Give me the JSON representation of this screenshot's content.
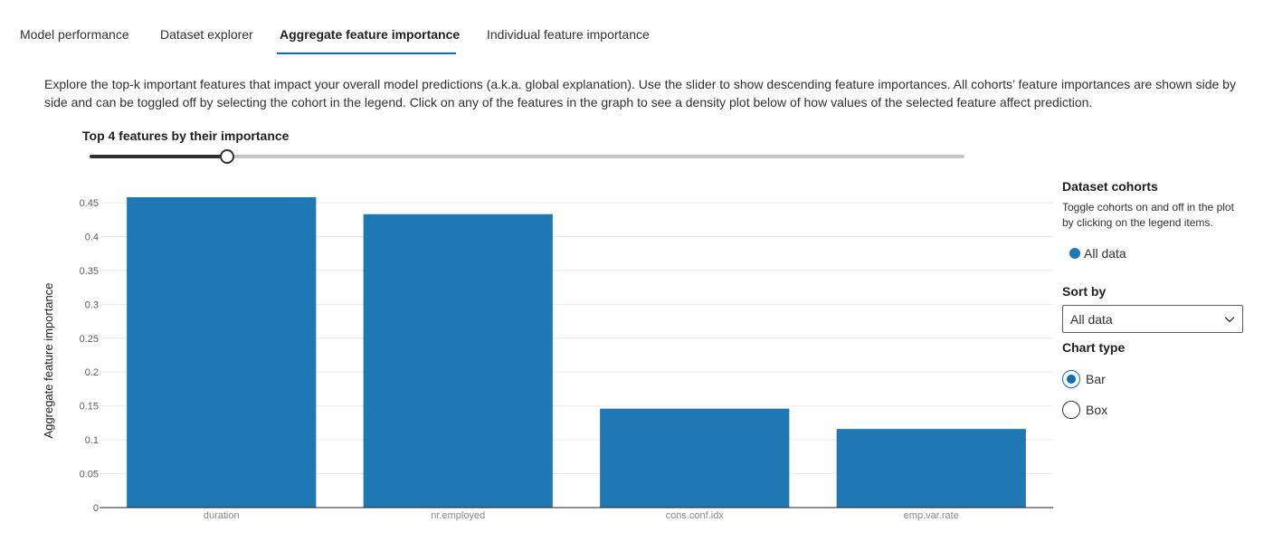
{
  "tabs": [
    {
      "label": "Model performance",
      "active": false
    },
    {
      "label": "Dataset explorer",
      "active": false
    },
    {
      "label": "Aggregate feature importance",
      "active": true
    },
    {
      "label": "Individual feature importance",
      "active": false
    }
  ],
  "description": "Explore the top-k important features that impact your overall model predictions (a.k.a. global explanation). Use the slider to show descending feature importances. All cohorts’ feature importances are shown side by side and can be toggled off by selecting the cohort in the legend. Click on any of the features in the graph to see a density plot below of how values of the selected feature affect prediction.",
  "slider": {
    "label": "Top 4 features by their importance",
    "value": 4,
    "fill_fraction": 0.157
  },
  "panel": {
    "cohorts_title": "Dataset cohorts",
    "cohorts_desc": "Toggle cohorts on and off in the plot by clicking on the legend items.",
    "legend": [
      {
        "label": "All data",
        "color": "#1f77b4"
      }
    ],
    "sort_by_label": "Sort by",
    "sort_by_value": "All data",
    "chart_type_label": "Chart type",
    "chart_types": [
      {
        "label": "Bar",
        "checked": true
      },
      {
        "label": "Box",
        "checked": false
      }
    ]
  },
  "colors": {
    "accent": "#0f6cbd",
    "bar": "#1f77b4"
  },
  "chart_data": {
    "type": "bar",
    "categories": [
      "duration",
      "nr.employed",
      "cons.conf.idx",
      "emp.var.rate"
    ],
    "series": [
      {
        "name": "All data",
        "values": [
          0.459,
          0.433,
          0.146,
          0.116
        ]
      }
    ],
    "ylabel": "Aggregate feature importance",
    "xlabel": "",
    "ylim": [
      0,
      0.45
    ],
    "yticks": [
      0,
      0.05,
      0.1,
      0.15,
      0.2,
      0.25,
      0.3,
      0.35,
      0.4,
      0.45
    ],
    "ytick_labels": [
      "0",
      "0.05",
      "0.1",
      "0.15",
      "0.2",
      "0.25",
      "0.3",
      "0.35",
      "0.4",
      "0.45"
    ],
    "grid": true
  }
}
